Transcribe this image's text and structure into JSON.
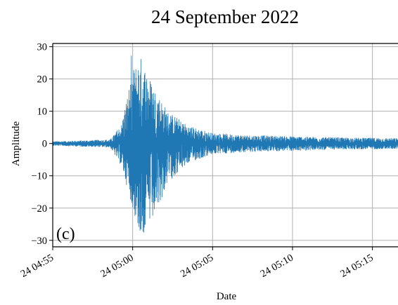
{
  "chart_data": {
    "type": "line",
    "title": "24 September 2022",
    "xlabel": "Date",
    "ylabel": "Amplitude",
    "panel_label": "(c)",
    "xlim_minutes": [
      0,
      21.6
    ],
    "ylim": [
      -32,
      31
    ],
    "yticks": [
      30,
      20,
      10,
      0,
      -10,
      -20,
      -30
    ],
    "xticks": [
      {
        "label": "24 04:55",
        "minutes_after_0455": 0
      },
      {
        "label": "24 05:00",
        "minutes_after_0455": 5
      },
      {
        "label": "24 05:05",
        "minutes_after_0455": 10
      },
      {
        "label": "24 05:10",
        "minutes_after_0455": 15
      },
      {
        "label": "24 05:15",
        "minutes_after_0455": 20
      }
    ],
    "grid": true,
    "series": [
      {
        "color": "#1f77b4",
        "envelope": {
          "description_points_minutes": [
            0,
            3.6,
            4.3,
            5.0,
            5.5,
            6.3,
            7.2,
            8.5,
            10,
            12,
            15,
            18,
            21.6
          ],
          "upper": [
            0.6,
            1.2,
            6,
            23,
            27,
            18,
            10,
            5.5,
            3.2,
            2.6,
            2.2,
            1.8,
            1.6
          ],
          "lower": [
            -0.6,
            -1.2,
            -7,
            -20,
            -29.5,
            -24,
            -12,
            -6,
            -3.3,
            -2.6,
            -2.2,
            -1.8,
            -1.6
          ]
        },
        "peak_max": 27.3,
        "peak_min": -29.5
      }
    ]
  },
  "colors": {
    "line": "#1f77b4",
    "grid": "#b0b0b0",
    "axes": "#000000"
  }
}
